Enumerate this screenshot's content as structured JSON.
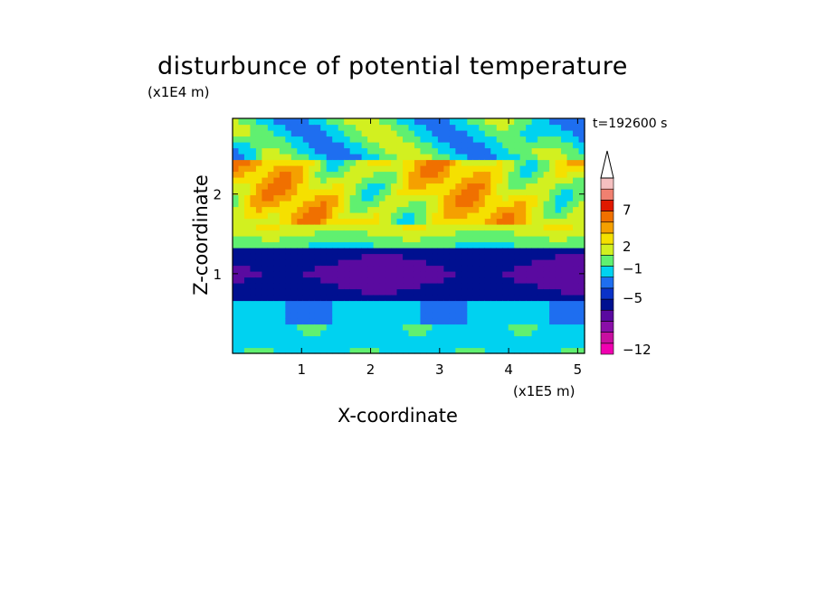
{
  "chart_data": {
    "type": "heatmap",
    "title": "disturbunce of potential temperature",
    "time_label": "t=192600 s",
    "xlabel": "X-coordinate",
    "ylabel": "Z-coordinate",
    "x_unit": "(x1E5 m)",
    "y_unit": "(x1E4 m)",
    "xlim": [
      0,
      5.1
    ],
    "ylim": [
      0,
      2.95
    ],
    "x_ticks": [
      1,
      2,
      3,
      4,
      5
    ],
    "y_ticks": [
      1,
      2
    ],
    "colorbar": {
      "tick_labels": [
        "7",
        "2",
        "−1",
        "−5",
        "−12"
      ],
      "tick_values": [
        7,
        2,
        -1,
        -5,
        -12
      ],
      "extend": "max",
      "colors": [
        "#f000b0",
        "#c80fa0",
        "#8a0fa8",
        "#5a0aa0",
        "#001090",
        "#0a32c8",
        "#1e6ef0",
        "#00d2f0",
        "#60f070",
        "#d2f020",
        "#f5e000",
        "#f5a000",
        "#f07000",
        "#e01800",
        "#f08070",
        "#f5c0c0"
      ]
    },
    "bands": [
      {
        "z_range": [
          0,
          0.35
        ],
        "pattern": "mixed light-blue / green with small yellow patches",
        "value_approx": -1
      },
      {
        "z_range": [
          0.35,
          0.7
        ],
        "pattern": "cyan with green patches",
        "value_approx": -1.5
      },
      {
        "z_range": [
          0.7,
          1.3
        ],
        "pattern": "deep blue core, weakest perturbation",
        "value_approx": -5
      },
      {
        "z_range": [
          1.3,
          1.6
        ],
        "pattern": "green to yellow transition",
        "value_approx": 0
      },
      {
        "z_range": [
          1.6,
          2.4
        ],
        "pattern": "yellow/orange with red maxima",
        "value_approx": 3
      },
      {
        "z_range": [
          2.4,
          2.95
        ],
        "pattern": "green/cyan with blue cells near top",
        "value_approx": 0
      }
    ]
  }
}
